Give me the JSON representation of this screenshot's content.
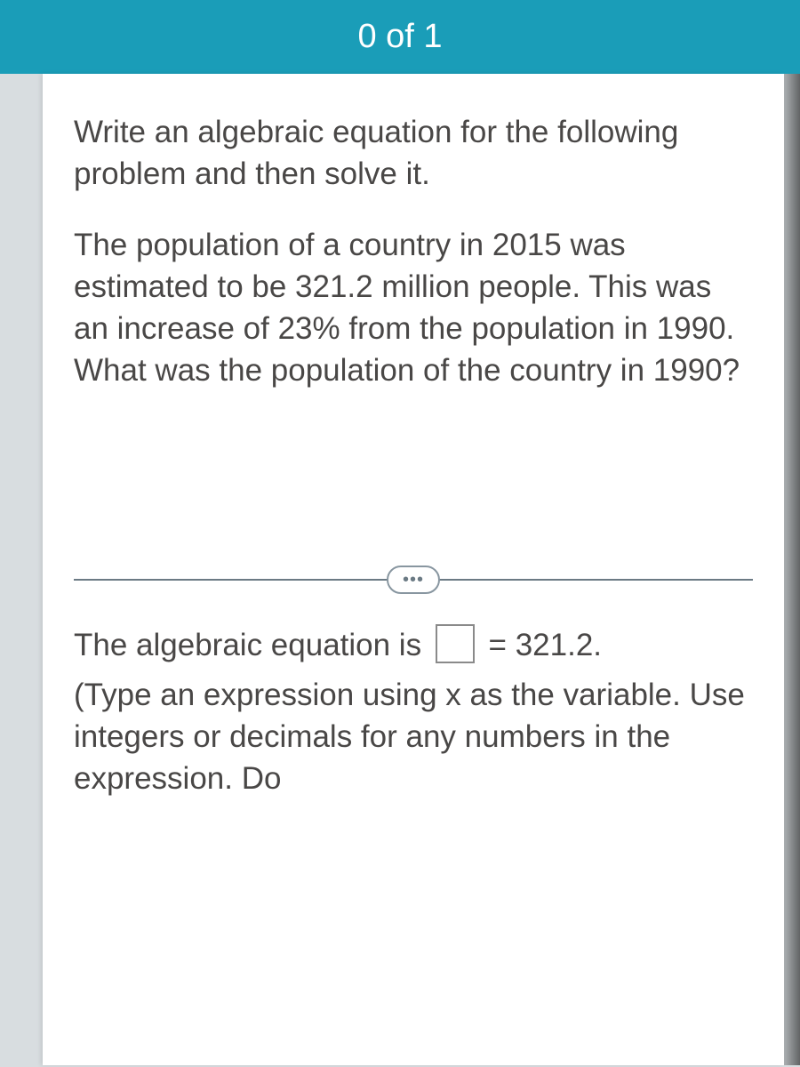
{
  "header": {
    "progress_text": "0 of 1"
  },
  "question": {
    "instruction": "Write an algebraic equation for the following problem and then solve it.",
    "problem": "The population of a country in 2015 was estimated to be 321.2 million people. This was an increase of 23% from the population in 1990. What was the population of the country in 1990?"
  },
  "divider": {
    "symbol": "•••"
  },
  "answer": {
    "lead_text": "The algebraic equation is ",
    "equals_value": " = 321.2.",
    "hint": "(Type an expression using x as the variable. Use integers or decimals for any numbers in the expression. Do"
  },
  "colors": {
    "header_bg": "#1a9db8",
    "header_text": "#ffffff",
    "body_text": "#494746",
    "panel_bg": "#ffffff",
    "page_bg": "#d8dde0"
  }
}
